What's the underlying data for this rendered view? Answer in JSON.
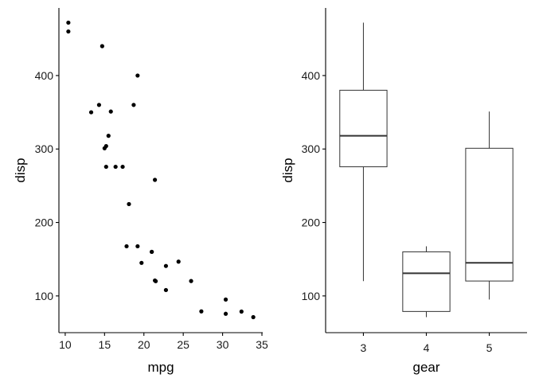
{
  "colors": {
    "axis": "#000000",
    "point": "#000000",
    "box_line": "#333333",
    "background": "#ffffff"
  },
  "chart_data": [
    {
      "type": "scatter",
      "title": "",
      "xlabel": "mpg",
      "ylabel": "disp",
      "xlim": [
        9.2,
        35.1
      ],
      "ylim": [
        50,
        492
      ],
      "xticks": [
        10,
        15,
        20,
        25,
        30,
        35
      ],
      "yticks": [
        100,
        200,
        300,
        400
      ],
      "grid": false,
      "points": [
        {
          "x": 21.0,
          "y": 160
        },
        {
          "x": 21.0,
          "y": 160
        },
        {
          "x": 22.8,
          "y": 108
        },
        {
          "x": 21.4,
          "y": 258
        },
        {
          "x": 18.7,
          "y": 360
        },
        {
          "x": 18.1,
          "y": 225
        },
        {
          "x": 14.3,
          "y": 360
        },
        {
          "x": 24.4,
          "y": 146.7
        },
        {
          "x": 22.8,
          "y": 140.8
        },
        {
          "x": 19.2,
          "y": 167.6
        },
        {
          "x": 17.8,
          "y": 167.6
        },
        {
          "x": 16.4,
          "y": 275.8
        },
        {
          "x": 17.3,
          "y": 275.8
        },
        {
          "x": 15.2,
          "y": 275.8
        },
        {
          "x": 10.4,
          "y": 472
        },
        {
          "x": 10.4,
          "y": 460
        },
        {
          "x": 14.7,
          "y": 440
        },
        {
          "x": 32.4,
          "y": 78.7
        },
        {
          "x": 30.4,
          "y": 75.7
        },
        {
          "x": 33.9,
          "y": 71.1
        },
        {
          "x": 21.5,
          "y": 120.1
        },
        {
          "x": 15.5,
          "y": 318
        },
        {
          "x": 15.2,
          "y": 304
        },
        {
          "x": 13.3,
          "y": 350
        },
        {
          "x": 19.2,
          "y": 400
        },
        {
          "x": 27.3,
          "y": 79
        },
        {
          "x": 26.0,
          "y": 120.3
        },
        {
          "x": 30.4,
          "y": 95.1
        },
        {
          "x": 15.8,
          "y": 351
        },
        {
          "x": 19.7,
          "y": 145
        },
        {
          "x": 15.0,
          "y": 301
        },
        {
          "x": 21.4,
          "y": 121
        }
      ]
    },
    {
      "type": "box",
      "title": "",
      "xlabel": "gear",
      "ylabel": "disp",
      "ylim": [
        50,
        492
      ],
      "yticks": [
        100,
        200,
        300,
        400
      ],
      "grid": false,
      "categories": [
        "3",
        "4",
        "5"
      ],
      "boxes": [
        {
          "category": "3",
          "min": 120.1,
          "q1": 275.8,
          "median": 318,
          "q3": 380,
          "max": 472
        },
        {
          "category": "4",
          "min": 71.1,
          "q1": 78.85,
          "median": 130.9,
          "q3": 160,
          "max": 167.6
        },
        {
          "category": "5",
          "min": 95.1,
          "q1": 120.3,
          "median": 145,
          "q3": 301,
          "max": 351
        }
      ]
    }
  ]
}
